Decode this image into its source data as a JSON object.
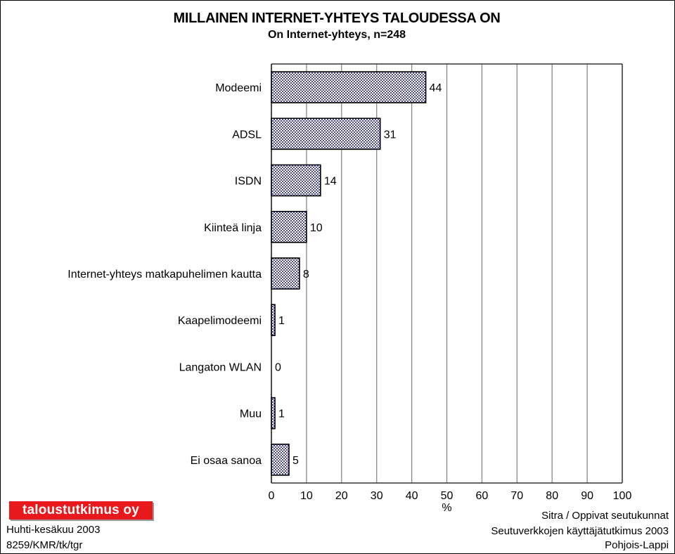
{
  "chart_data": {
    "type": "bar",
    "orientation": "horizontal",
    "title": "MILLAINEN INTERNET-YHTEYS TALOUDESSA ON",
    "subtitle": "On Internet-yhteys, n=248",
    "categories": [
      "Modeemi",
      "ADSL",
      "ISDN",
      "Kiinteä linja",
      "Internet-yhteys matkapuhelimen kautta",
      "Kaapelimodeemi",
      "Langaton WLAN",
      "Muu",
      "Ei osaa sanoa"
    ],
    "values": [
      44,
      31,
      14,
      10,
      8,
      1,
      0,
      1,
      5
    ],
    "data_labels": [
      "44",
      "31",
      "14",
      "10",
      "8",
      "1",
      "0",
      "1",
      "5"
    ],
    "xlabel": "%",
    "ylabel": "",
    "xlim": [
      0,
      100
    ],
    "xticks": [
      "0",
      "10",
      "20",
      "30",
      "40",
      "50",
      "60",
      "70",
      "80",
      "90",
      "100"
    ],
    "grid": true,
    "legend": "none",
    "bar_fill": "#4b4bb0",
    "bar_pattern": "checkered"
  },
  "footer": {
    "logo_text": "taloustutkimus oy",
    "left_lines": [
      "Huhti-kesäkuu 2003",
      "8259/KMR/tk/tgr"
    ],
    "right_lines": [
      "Sitra / Oppivat seutukunnat",
      "Seutuverkkojen käyttäjätutkimus 2003",
      "Pohjois-Lappi"
    ]
  },
  "colors": {
    "logo_bg": "#e8191c",
    "bar": "#4b4bb0",
    "grid": "#888888"
  }
}
